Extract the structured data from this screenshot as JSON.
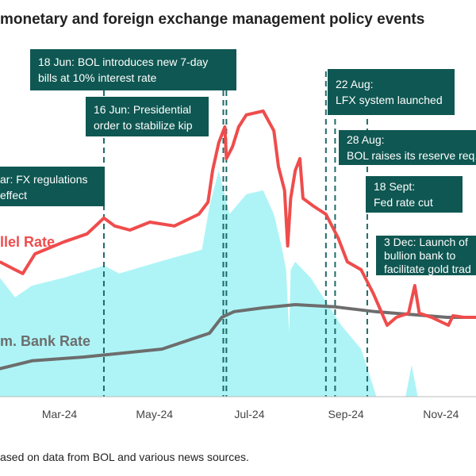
{
  "title": "monetary and foreign exchange management policy events",
  "source": "ased on data from BOL and various news sources.",
  "chart_data": {
    "type": "line",
    "x_ticks": [
      "Mar-24",
      "May-24",
      "Jul-24",
      "Sep-24",
      "Nov-24"
    ],
    "ylim": [
      0,
      125
    ],
    "grid": false,
    "colors": {
      "parallel": "#ef4c4c",
      "bank": "#6d6d6d",
      "area": "#aef4f6",
      "annotation": "#0f5752"
    },
    "series": [
      {
        "name": "llel Rate",
        "x": [
          "2024-01-22",
          "2024-02-01",
          "2024-02-06",
          "2024-02-14",
          "2024-03-04",
          "2024-03-19",
          "2024-03-30",
          "2024-04-06",
          "2024-04-16",
          "2024-04-29",
          "2024-05-15",
          "2024-05-31",
          "2024-06-06",
          "2024-06-09",
          "2024-06-13",
          "2024-06-17",
          "2024-06-18",
          "2024-06-22",
          "2024-06-26",
          "2024-07-01",
          "2024-07-12",
          "2024-07-19",
          "2024-07-22",
          "2024-07-26",
          "2024-07-28",
          "2024-07-30",
          "2024-08-02",
          "2024-08-05",
          "2024-08-07",
          "2024-08-14",
          "2024-08-22",
          "2024-08-30",
          "2024-09-05",
          "2024-09-14",
          "2024-09-22",
          "2024-10-01",
          "2024-10-07",
          "2024-10-15",
          "2024-10-19",
          "2024-10-22",
          "2024-10-30",
          "2024-11-10",
          "2024-11-13",
          "2024-11-20",
          "2024-11-28"
        ],
        "y": [
          42.5,
          40,
          38.8,
          45,
          48.8,
          51.3,
          56.3,
          53.8,
          52.5,
          55,
          53.8,
          57.5,
          61.3,
          71.3,
          80,
          85,
          75,
          78.8,
          85,
          88.8,
          90,
          83.8,
          72.5,
          65,
          47.5,
          62.5,
          71.3,
          75,
          62.5,
          60,
          57.5,
          50,
          42.5,
          40,
          32.5,
          22.5,
          25,
          26.3,
          35,
          26.3,
          25,
          22.5,
          25.5,
          25,
          25
        ]
      },
      {
        "name": "m. Bank Rate",
        "x": [
          "2024-01-22",
          "2024-02-12",
          "2024-03-17",
          "2024-05-07",
          "2024-06-07",
          "2024-06-15",
          "2024-06-23",
          "2024-07-12",
          "2024-08-02",
          "2024-08-28",
          "2024-09-23",
          "2024-10-19",
          "2024-11-09",
          "2024-11-28"
        ],
        "y": [
          8.8,
          11.3,
          12.5,
          15,
          20,
          25,
          26.8,
          28,
          29,
          28.3,
          26.8,
          25.8,
          25,
          25
        ]
      },
      {
        "name": "",
        "type": "area",
        "x": [
          "2024-01-22",
          "2024-02-01",
          "2024-02-12",
          "2024-03-04",
          "2024-03-30",
          "2024-04-09",
          "2024-05-05",
          "2024-06-02",
          "2024-06-07",
          "2024-06-13",
          "2024-06-20",
          "2024-07-01",
          "2024-07-12",
          "2024-07-19",
          "2024-07-24",
          "2024-07-27",
          "2024-07-29",
          "2024-07-30",
          "2024-08-02",
          "2024-08-12",
          "2024-08-22",
          "2024-09-01",
          "2024-09-14",
          "2024-09-19",
          "2024-09-24",
          "2024-10-13",
          "2024-10-17",
          "2024-10-21",
          "2024-11-28"
        ],
        "y": [
          37.5,
          31.3,
          35,
          37.5,
          41.3,
          38.8,
          42.5,
          46.3,
          60,
          71.3,
          57.5,
          63.8,
          65,
          57.5,
          47.5,
          40,
          20,
          40,
          42.5,
          37.5,
          30,
          22.5,
          15,
          7.5,
          0,
          0,
          10,
          0,
          0
        ]
      }
    ],
    "events": [
      {
        "date": "2024-03-30",
        "label": [
          "ar: FX regulations",
          "effect"
        ]
      },
      {
        "date": "2024-06-16",
        "label": [
          "16 Jun: Presidential",
          "order to stabilize kip"
        ]
      },
      {
        "date": "2024-06-18",
        "label": [
          "18 Jun: BOL introduces new 7-day",
          "bills at 10% interest rate"
        ]
      },
      {
        "date": "2024-08-22",
        "label": [
          "22 Aug:",
          "LFX system launched"
        ]
      },
      {
        "date": "2024-08-28",
        "label": [
          "28 Aug:",
          "BOL raises its reserve req."
        ]
      },
      {
        "date": "2024-09-18",
        "label": [
          "18 Sept:",
          "Fed rate cut"
        ]
      },
      {
        "date": "2024-12-03",
        "label": [
          "3 Dec: Launch of",
          "bullion bank to",
          "facilitate gold trad"
        ]
      }
    ]
  }
}
